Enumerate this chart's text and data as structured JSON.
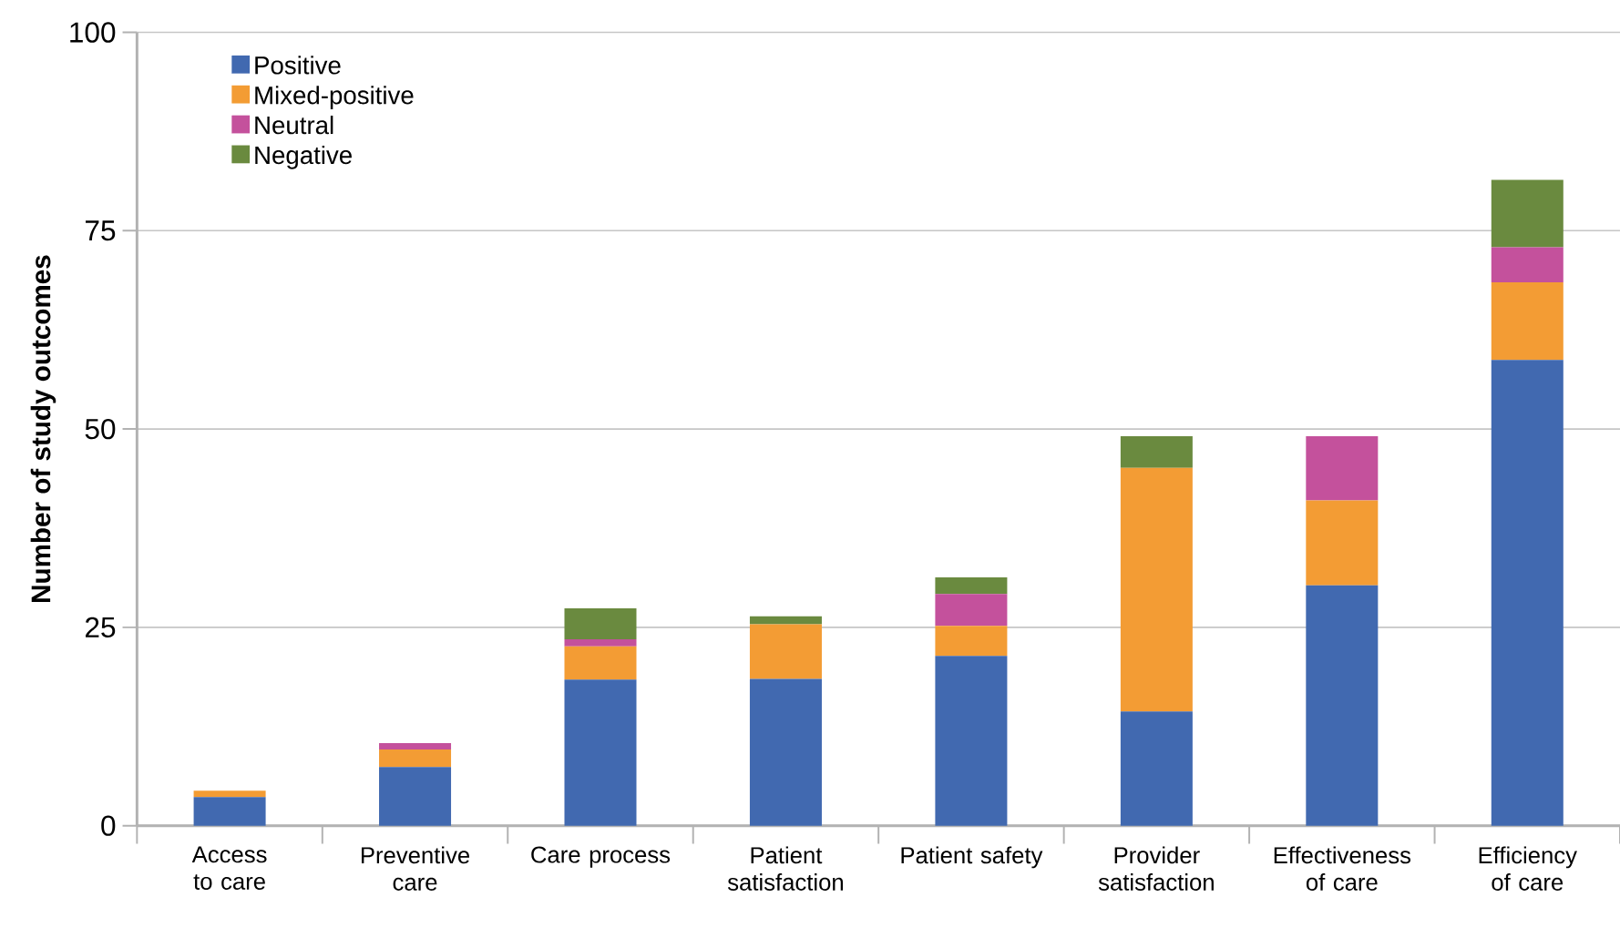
{
  "chart_data": {
    "type": "bar",
    "stacked": true,
    "ylabel": "Number of study outcomes",
    "categories": [
      "Access to care",
      "Preventive care",
      "Care process",
      "Patient satisfaction",
      "Patient safety",
      "Provider satisfaction",
      "Effectiveness of care",
      "Efficiency of care"
    ],
    "series": [
      {
        "name": "Positive",
        "color": "#4169b0",
        "values": [
          3.6,
          7.4,
          18.4,
          18.5,
          21.4,
          14.4,
          30.3,
          58.7
        ]
      },
      {
        "name": "Mixed-positive",
        "color": "#f39c34",
        "values": [
          0.8,
          2.2,
          4.2,
          6.9,
          3.8,
          30.7,
          10.7,
          9.8
        ]
      },
      {
        "name": "Neutral",
        "color": "#c4519c",
        "values": [
          0,
          0.8,
          0.9,
          0,
          4.0,
          0,
          8.1,
          4.4
        ]
      },
      {
        "name": "Negative",
        "color": "#6a8a3f",
        "values": [
          0,
          0,
          3.9,
          1.0,
          2.1,
          4.0,
          0,
          8.5
        ]
      }
    ],
    "ylim": [
      0,
      100
    ],
    "yticks": [
      0,
      25,
      50,
      75,
      100
    ],
    "grid": "y",
    "legend": "top left"
  }
}
